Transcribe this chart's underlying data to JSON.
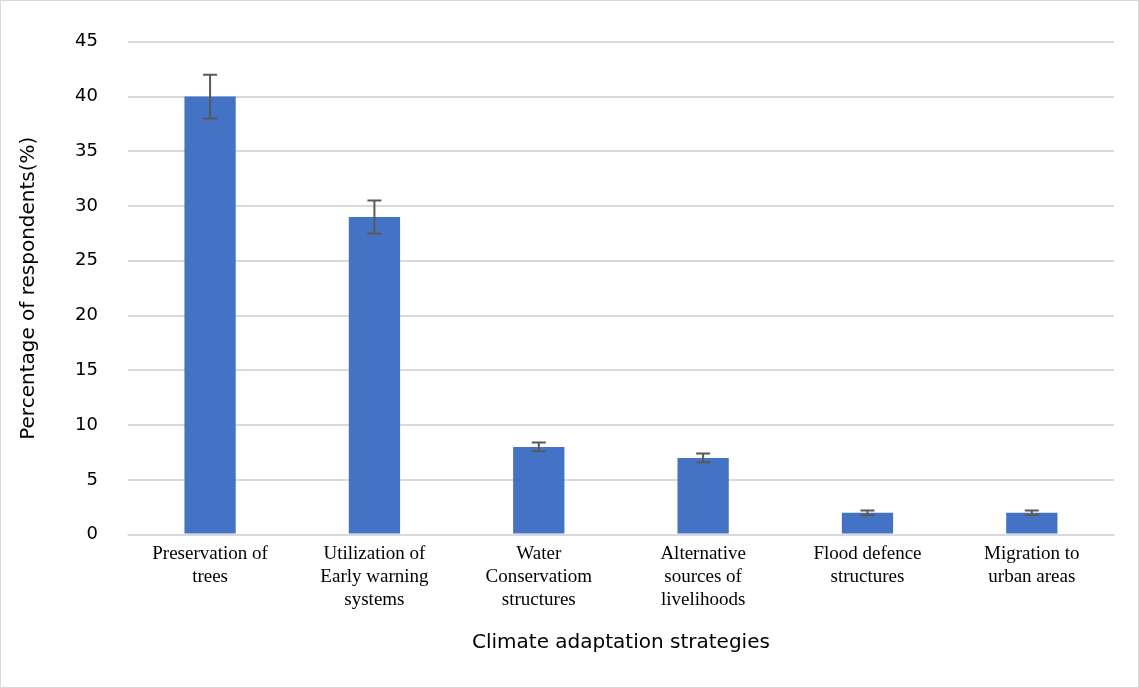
{
  "chart_data": {
    "type": "bar",
    "xlabel": "Climate adaptation strategies",
    "ylabel": "Percentage of respondents(%)",
    "categories": [
      "Preservation of trees",
      "Utilization of Early warning systems",
      "Water Conservatiom structures",
      "Alternative sources of livelihoods",
      "Flood defence structures",
      "Migration to urban areas"
    ],
    "values": [
      40,
      29,
      8,
      7,
      2,
      2
    ],
    "errors": [
      2,
      1.5,
      0.4,
      0.4,
      0.2,
      0.2
    ],
    "color": "#4472c4",
    "ylim": [
      0,
      45
    ],
    "yticks": [
      0,
      5,
      10,
      15,
      20,
      25,
      30,
      35,
      40,
      45
    ],
    "grid": "y",
    "legend": false
  }
}
